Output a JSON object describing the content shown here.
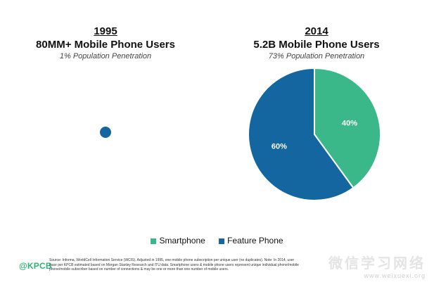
{
  "colors": {
    "smartphone": "#3bb88a",
    "feature_phone": "#1366a0"
  },
  "chart_data": [
    {
      "type": "pie",
      "title": "1995",
      "subtitle": "80MM+ Mobile Phone Users",
      "caption": "1% Population Penetration",
      "slices": [
        {
          "name": "Feature Phone",
          "value": 100,
          "label": ""
        }
      ]
    },
    {
      "type": "pie",
      "title": "2014",
      "subtitle": "5.2B Mobile Phone Users",
      "caption": "73% Population Penetration",
      "slices": [
        {
          "name": "Smartphone",
          "value": 40,
          "label": "40%"
        },
        {
          "name": "Feature Phone",
          "value": 60,
          "label": "60%"
        }
      ]
    }
  ],
  "legend": [
    {
      "name": "Smartphone",
      "color": "#3bb88a"
    },
    {
      "name": "Feature Phone",
      "color": "#1366a0"
    }
  ],
  "footer": {
    "logo": "@KPCB",
    "notes": "Source: Informa, WorldCell Information Service (WCIS). Adjusted in 1995, one mobile phone subscription per unique user (no duplicates). Note: In 2014, user base per KPCB estimated based on Morgan Stanley Research and ITU data. Smartphone users & mobile phone users represent unique individual phone/mobile phone/mobile subscriber based on number of connections & may be one or more than one number of mobile users."
  },
  "watermark": {
    "text": "微信学习网络",
    "url": "www.weixuexi.org"
  }
}
